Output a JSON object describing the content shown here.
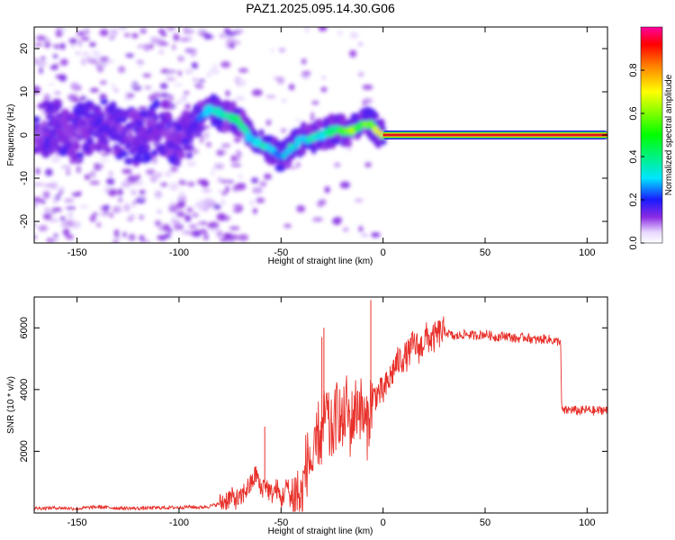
{
  "title": "PAZ1.2025.095.14.30.G06",
  "colors": {
    "snr_line": "#e8302a",
    "band": "#dc1428",
    "axis": "#000000",
    "background": "#ffffff"
  },
  "chart_data": [
    {
      "type": "heatmap",
      "name": "spectrogram",
      "xlabel": "Height of straight line (km)",
      "ylabel": "Frequency (Hz)",
      "xlim": [
        -171,
        110
      ],
      "ylim": [
        -25,
        25
      ],
      "xticks": [
        "-150",
        "-100",
        "-50",
        "0",
        "50",
        "100"
      ],
      "xtick_values": [
        -150,
        -100,
        -50,
        0,
        50,
        100
      ],
      "yticks": [
        "-20",
        "-10",
        "0",
        "10",
        "20"
      ],
      "ytick_values": [
        -20,
        -10,
        0,
        10,
        20
      ],
      "colorbar": {
        "label": "Normalized spectral amplitude",
        "range": [
          0,
          1
        ],
        "ticks": [
          "0.0",
          "0.2",
          "0.4",
          "0.6",
          "0.8"
        ],
        "tick_values": [
          0.0,
          0.2,
          0.4,
          0.6,
          0.8
        ]
      },
      "ridge": {
        "heights_km": [
          -170,
          -160,
          -150,
          -140,
          -130,
          -120,
          -110,
          -100,
          -95,
          -90,
          -85,
          -80,
          -75,
          -70,
          -65,
          -60,
          -55,
          -50,
          -45,
          -40,
          -35,
          -30,
          -25,
          -20,
          -15,
          -10,
          -5,
          0
        ],
        "frequency_hz": [
          1,
          2,
          0,
          3,
          1,
          -1,
          2,
          -1,
          1,
          4,
          6,
          5,
          4,
          3,
          -1,
          -2,
          -3,
          -5,
          -3,
          -1,
          -1,
          0,
          1,
          1,
          1,
          3,
          2,
          0
        ],
        "amplitude": [
          0.12,
          0.15,
          0.12,
          0.16,
          0.14,
          0.13,
          0.15,
          0.12,
          0.16,
          0.22,
          0.32,
          0.42,
          0.38,
          0.45,
          0.3,
          0.4,
          0.32,
          0.28,
          0.38,
          0.3,
          0.4,
          0.35,
          0.42,
          0.52,
          0.62,
          0.55,
          0.7,
          0.75
        ]
      },
      "band": {
        "from_km": 0,
        "to_km": 110,
        "frequency_hz": 0,
        "amplitude": 0.95
      }
    },
    {
      "type": "line",
      "name": "snr",
      "xlabel": "Height of straight line (km)",
      "ylabel": "SNR (10 * v/v)",
      "xlim": [
        -171,
        110
      ],
      "ylim": [
        0,
        7000
      ],
      "xticks": [
        "-150",
        "-100",
        "-50",
        "0",
        "50",
        "100"
      ],
      "xtick_values": [
        -150,
        -100,
        -50,
        0,
        50,
        100
      ],
      "yticks": [
        "2000",
        "4000",
        "6000"
      ],
      "ytick_values": [
        2000,
        4000,
        6000
      ],
      "series": [
        {
          "name": "SNR",
          "x": [
            -171,
            -160,
            -150,
            -140,
            -130,
            -120,
            -110,
            -100,
            -95,
            -90,
            -85,
            -80,
            -75,
            -70,
            -68,
            -65,
            -62,
            -60,
            -58,
            -55,
            -52,
            -50,
            -47,
            -45,
            -42,
            -40,
            -38,
            -36,
            -34,
            -32,
            -30,
            -28,
            -26,
            -24,
            -22,
            -20,
            -18,
            -16,
            -14,
            -12,
            -10,
            -8,
            -6,
            -4,
            -2,
            0,
            3,
            6,
            9,
            12,
            15,
            18,
            21,
            24,
            27,
            30,
            35,
            40,
            45,
            50,
            55,
            60,
            65,
            70,
            75,
            80,
            85,
            87,
            87.5,
            88,
            92,
            96,
            100,
            104,
            108,
            110
          ],
          "y": [
            150,
            170,
            140,
            200,
            160,
            150,
            170,
            180,
            200,
            180,
            220,
            300,
            500,
            420,
            700,
            900,
            1300,
            700,
            1000,
            600,
            800,
            400,
            900,
            400,
            700,
            300,
            1500,
            1800,
            1400,
            2600,
            2400,
            3400,
            2500,
            2800,
            3500,
            2700,
            3500,
            2800,
            3300,
            3600,
            3200,
            2700,
            3600,
            3800,
            3900,
            3900,
            4300,
            4800,
            5000,
            5100,
            5500,
            5300,
            5700,
            5600,
            5800,
            5900,
            5700,
            5800,
            5750,
            5800,
            5700,
            5750,
            5650,
            5700,
            5600,
            5650,
            5550,
            5600,
            3500,
            3300,
            3350,
            3300,
            3350,
            3300,
            3350,
            3300
          ],
          "spikes": [
            {
              "x": -58,
              "y": 2800
            },
            {
              "x": -30,
              "y": 5700
            },
            {
              "x": -29,
              "y": 6000
            },
            {
              "x": -6,
              "y": 6900
            }
          ]
        }
      ]
    }
  ]
}
